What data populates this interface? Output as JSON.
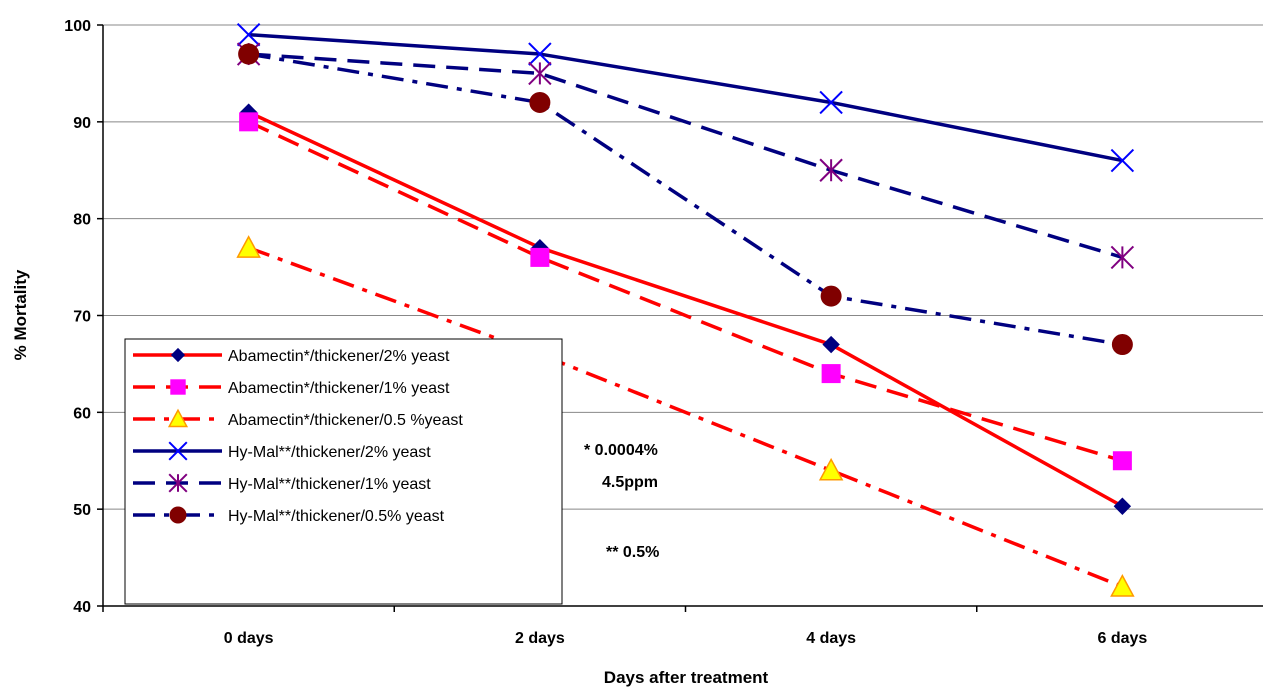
{
  "chart_data": {
    "type": "line",
    "title": "",
    "xlabel": "Days after treatment",
    "ylabel": "% Mortality",
    "categories": [
      "0 days",
      "2 days",
      "4 days",
      "6 days"
    ],
    "ylim": [
      40,
      100
    ],
    "yticks": [
      40,
      50,
      60,
      70,
      80,
      90,
      100
    ],
    "grid": true,
    "legend_position": "bottom-left",
    "series": [
      {
        "name": "Abamectin*/thickener/2% yeast",
        "values": [
          91,
          77,
          67,
          50.3
        ],
        "color": "#ff0000",
        "dash": "solid",
        "marker": "diamond",
        "marker_fill": "#000080"
      },
      {
        "name": "Abamectin*/thickener/1% yeast",
        "values": [
          90,
          76,
          64,
          55
        ],
        "color": "#ff0000",
        "dash": "dash",
        "marker": "square",
        "marker_fill": "#ff00ff"
      },
      {
        "name": "Abamectin*/thickener/0.5 %yeast",
        "values": [
          77,
          66,
          54,
          42
        ],
        "color": "#ff0000",
        "dash": "dashdot",
        "marker": "triangle",
        "marker_fill": "#ffff00"
      },
      {
        "name": "Hy-Mal**/thickener/2% yeast",
        "values": [
          99,
          97,
          92,
          86
        ],
        "color": "#000080",
        "dash": "solid",
        "marker": "x",
        "marker_fill": "#0000ff"
      },
      {
        "name": "Hy-Mal**/thickener/1% yeast",
        "values": [
          97,
          95,
          85,
          76
        ],
        "color": "#000080",
        "dash": "dash",
        "marker": "star",
        "marker_fill": "#800080"
      },
      {
        "name": "Hy-Mal**/thickener/0.5% yeast",
        "values": [
          97,
          92,
          72,
          67
        ],
        "color": "#000080",
        "dash": "dashdot",
        "marker": "circle",
        "marker_fill": "#800000"
      }
    ],
    "annotations": [
      "* 0.0004%",
      "4.5ppm",
      "** 0.5%"
    ]
  }
}
